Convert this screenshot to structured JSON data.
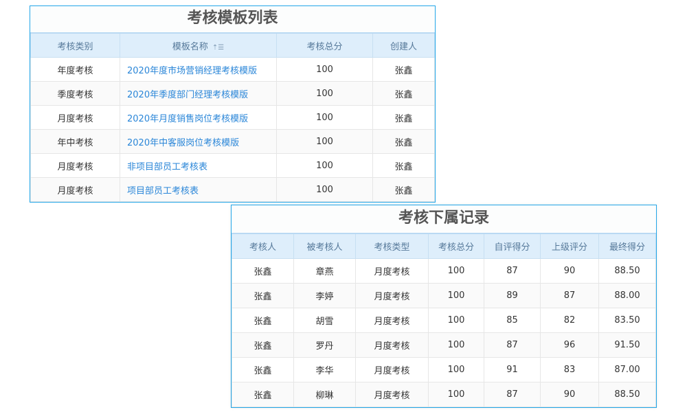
{
  "templates": {
    "title": "考核模板列表",
    "headers": [
      "考核类别",
      "模板名称",
      "考核总分",
      "创建人"
    ],
    "rows": [
      [
        "年度考核",
        "2020年度市场营销经理考核模版",
        "100",
        "张鑫"
      ],
      [
        "季度考核",
        "2020年季度部门经理考核模版",
        "100",
        "张鑫"
      ],
      [
        "月度考核",
        "2020年月度销售岗位考核模版",
        "100",
        "张鑫"
      ],
      [
        "年中考核",
        "2020年中客服岗位考核模版",
        "100",
        "张鑫"
      ],
      [
        "月度考核",
        "非项目部员工考核表",
        "100",
        "张鑫"
      ],
      [
        "月度考核",
        "项目部员工考核表",
        "100",
        "张鑫"
      ]
    ]
  },
  "records": {
    "title": "考核下属记录",
    "headers": [
      "考核人",
      "被考核人",
      "考核类型",
      "考核总分",
      "自评得分",
      "上级评分",
      "最终得分"
    ],
    "rows": [
      [
        "张鑫",
        "章燕",
        "月度考核",
        "100",
        "87",
        "90",
        "88.50"
      ],
      [
        "张鑫",
        "李婷",
        "月度考核",
        "100",
        "89",
        "87",
        "88.00"
      ],
      [
        "张鑫",
        "胡雪",
        "月度考核",
        "100",
        "85",
        "82",
        "83.50"
      ],
      [
        "张鑫",
        "罗丹",
        "月度考核",
        "100",
        "87",
        "96",
        "91.50"
      ],
      [
        "张鑫",
        "李华",
        "月度考核",
        "100",
        "91",
        "83",
        "87.00"
      ],
      [
        "张鑫",
        "柳琳",
        "月度考核",
        "100",
        "87",
        "90",
        "88.50"
      ]
    ]
  }
}
